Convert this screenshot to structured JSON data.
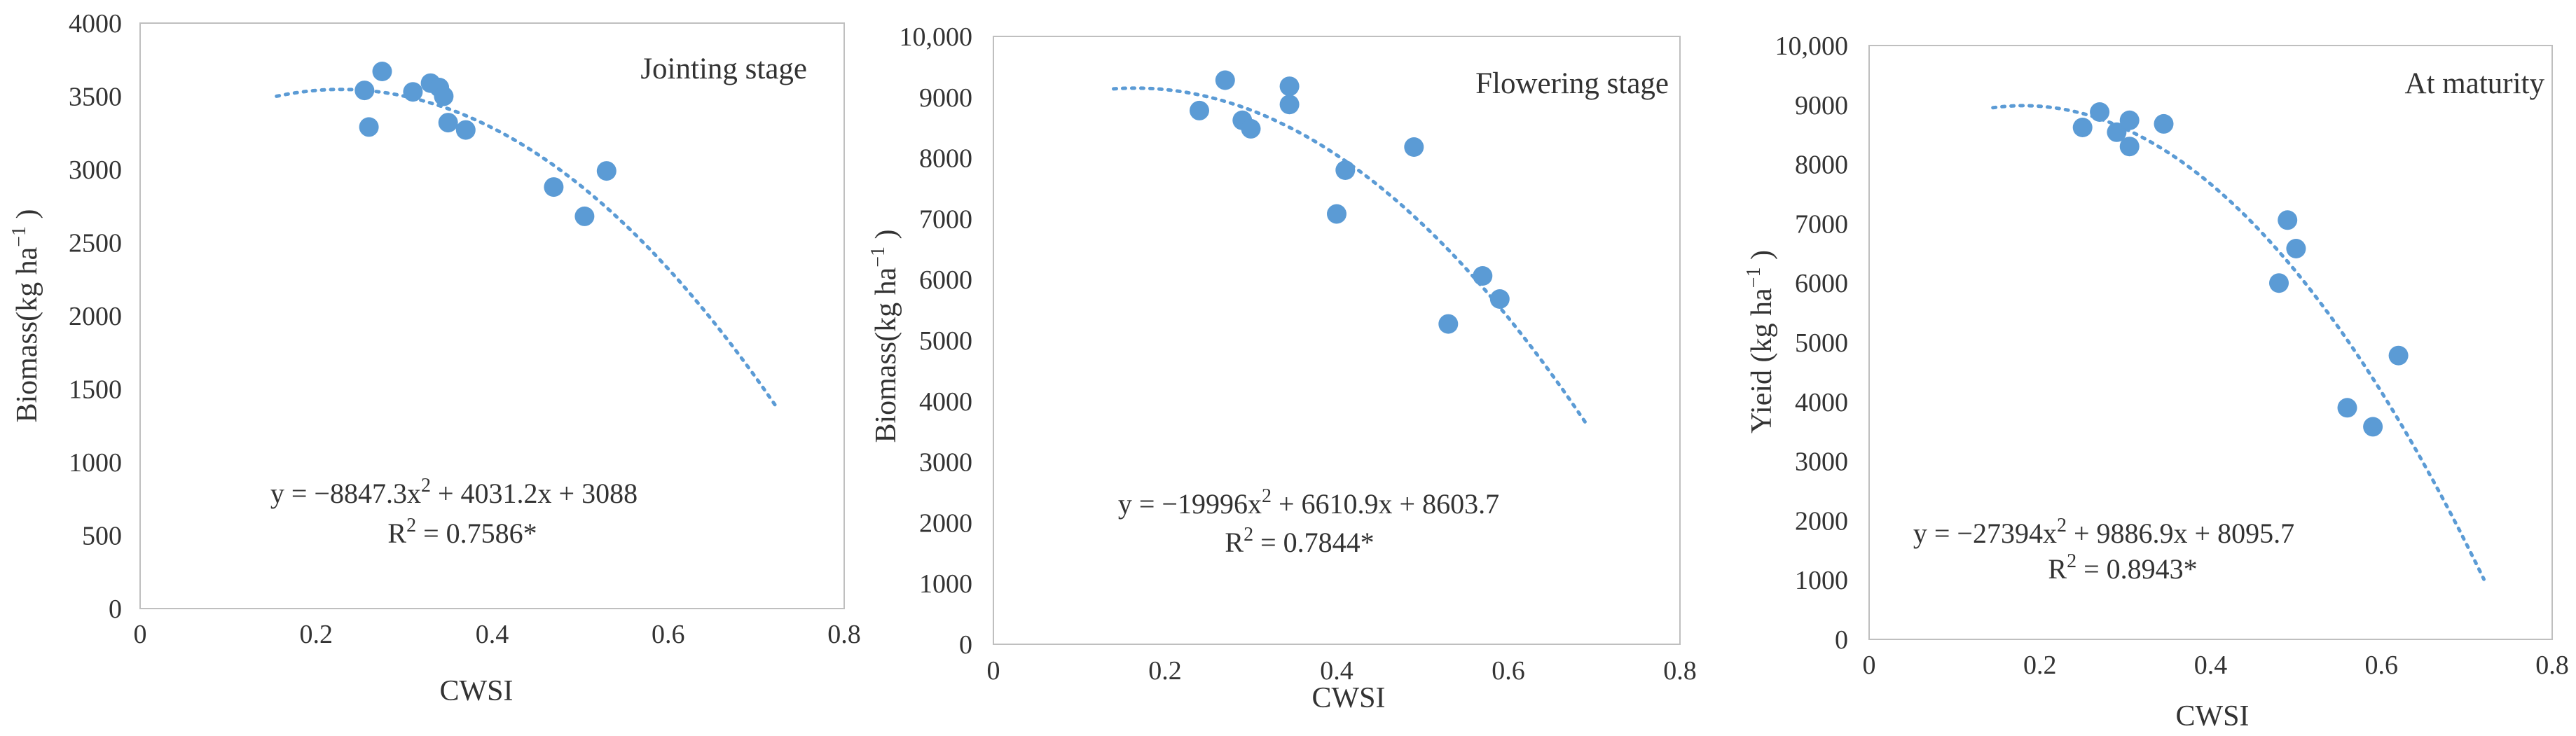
{
  "chart_data": [
    {
      "type": "scatter",
      "title": "Jointing stage",
      "xlabel": "CWSI",
      "ylabel_main": "Biomass(kg ha",
      "ylabel_sup": "−1",
      "ylabel_tail": " )",
      "xlim": [
        0,
        0.8
      ],
      "ylim": [
        0,
        4000
      ],
      "xticks": [
        "0",
        "0.2",
        "0.4",
        "0.6",
        "0.8"
      ],
      "yticks": [
        "0",
        "500",
        "1000",
        "1500",
        "2000",
        "2500",
        "3000",
        "3500",
        "4000"
      ],
      "x": [
        0.255,
        0.275,
        0.26,
        0.31,
        0.33,
        0.34,
        0.345,
        0.35,
        0.37,
        0.47,
        0.505,
        0.53
      ],
      "y": [
        3540,
        3670,
        3290,
        3530,
        3590,
        3560,
        3500,
        3320,
        3270,
        2880,
        2680,
        2990
      ],
      "trend": {
        "a": -8847.3,
        "b": 4031.2,
        "c": 3088,
        "x_range": [
          0.155,
          0.725
        ]
      },
      "equation": {
        "lead": "y = −8847.3x",
        "sup": "2",
        "tail": " + 4031.2x + 3088"
      },
      "r2": {
        "lead": "R",
        "sup": "2",
        "tail": " = 0.7586*"
      }
    },
    {
      "type": "scatter",
      "title": "Flowering stage",
      "xlabel": "CWSI",
      "ylabel_main": "Biomass(kg ha",
      "ylabel_sup": "−1",
      "ylabel_tail": " )",
      "xlim": [
        0,
        0.8
      ],
      "ylim": [
        0,
        10000
      ],
      "xticks": [
        "0",
        "0.2",
        "0.4",
        "0.6",
        "0.8"
      ],
      "yticks": [
        "0",
        "1000",
        "2000",
        "3000",
        "4000",
        "5000",
        "6000",
        "7000",
        "8000",
        "9000",
        "10,000"
      ],
      "x": [
        0.24,
        0.27,
        0.29,
        0.3,
        0.345,
        0.345,
        0.4,
        0.41,
        0.49,
        0.53,
        0.57,
        0.59
      ],
      "y": [
        8780,
        9280,
        8620,
        8480,
        9180,
        8880,
        7080,
        7800,
        8180,
        5270,
        6060,
        5680
      ],
      "trend": {
        "a": -19996,
        "b": 6610.9,
        "c": 8603.7,
        "x_range": [
          0.14,
          0.69
        ]
      },
      "equation": {
        "lead": "y = −19996x",
        "sup": "2",
        "tail": " + 6610.9x + 8603.7"
      },
      "r2": {
        "lead": "R",
        "sup": "2",
        "tail": " = 0.7844*"
      }
    },
    {
      "type": "scatter",
      "title": "At maturity",
      "xlabel": "CWSI",
      "ylabel_main": "Yieid (kg ha",
      "ylabel_sup": "−1",
      "ylabel_tail": " )",
      "xlim": [
        0,
        0.8
      ],
      "ylim": [
        0,
        10000
      ],
      "xticks": [
        "0",
        "0.2",
        "0.4",
        "0.6",
        "0.8"
      ],
      "yticks": [
        "0",
        "1000",
        "2000",
        "3000",
        "4000",
        "5000",
        "6000",
        "7000",
        "8000",
        "9000",
        "10,000"
      ],
      "x": [
        0.25,
        0.27,
        0.29,
        0.305,
        0.305,
        0.345,
        0.48,
        0.49,
        0.5,
        0.56,
        0.59,
        0.62
      ],
      "y": [
        8620,
        8880,
        8540,
        8740,
        8300,
        8680,
        6000,
        7060,
        6580,
        3900,
        3580,
        4780
      ],
      "trend": {
        "a": -27394,
        "b": 9886.9,
        "c": 8095.7,
        "x_range": [
          0.145,
          0.72
        ]
      },
      "equation": {
        "lead": "y = −27394x",
        "sup": "2",
        "tail": " + 9886.9x + 8095.7"
      },
      "r2": {
        "lead": "R",
        "sup": "2",
        "tail": " = 0.8943*"
      }
    }
  ],
  "colors": {
    "marker": "#5b9bd5",
    "trendline": "#5b9bd5",
    "text": "#333333",
    "plot_border": "#bfbfbf"
  }
}
